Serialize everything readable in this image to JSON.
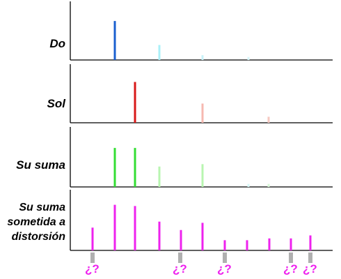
{
  "panels": [
    {
      "label": "Do",
      "spikes": [
        {
          "color": "#1a5fcf",
          "strength": 0.65
        },
        {
          "color": "#aaf0f8",
          "strength": 0.25
        },
        {
          "color": "#c8f2f8",
          "strength": 0.08
        },
        {
          "color": "#d8f6fa",
          "strength": 0.05
        }
      ]
    },
    {
      "label": "Sol",
      "spikes": [
        {
          "color": "#d81818",
          "strength": 0.68
        },
        {
          "color": "#f6b8b0",
          "strength": 0.32
        },
        {
          "color": "#f6c8c0",
          "strength": 0.1
        }
      ]
    },
    {
      "label": "Su suma",
      "spikes": [
        {
          "color": "#33dd33",
          "strength": 0.65
        },
        {
          "color": "#33dd33",
          "strength": 0.65
        },
        {
          "color": "#b8f5b0",
          "strength": 0.34
        },
        {
          "color": "#b8f5b0",
          "strength": 0.38
        },
        {
          "color": "#d8f8f8",
          "strength": 0.05
        },
        {
          "color": "#d8f8d8",
          "strength": 0.05
        }
      ]
    },
    {
      "label": "Su suma sometida a distorsión",
      "spikes": [
        {
          "color": "#ee22ee",
          "strength": 0.38
        },
        {
          "color": "#ee22ee",
          "strength": 0.76
        },
        {
          "color": "#ee22ee",
          "strength": 0.74
        },
        {
          "color": "#ee22ee",
          "strength": 0.48
        },
        {
          "color": "#ee22ee",
          "strength": 0.34
        },
        {
          "color": "#ee22ee",
          "strength": 0.46
        },
        {
          "color": "#ee22ee",
          "strength": 0.17
        },
        {
          "color": "#ee22ee",
          "strength": 0.17
        },
        {
          "color": "#ee22ee",
          "strength": 0.2
        },
        {
          "color": "#ee22ee",
          "strength": 0.2
        },
        {
          "color": "#ee22ee",
          "strength": 0.25
        }
      ]
    }
  ],
  "unknown_label": "¿?",
  "colors": {
    "axis": "#000000",
    "unknown_marker": "#b0b0b0",
    "unknown_text": "#ee22ee"
  }
}
